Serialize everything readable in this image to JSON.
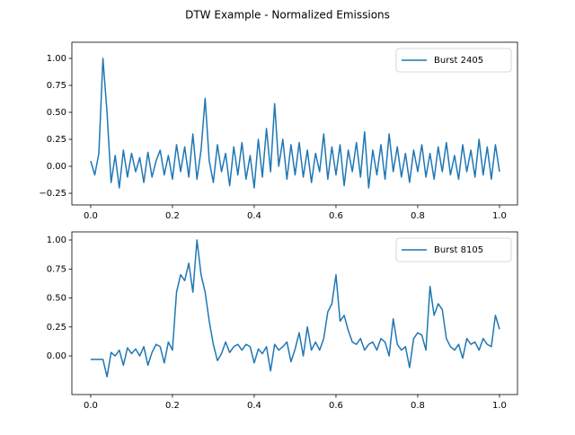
{
  "suptitle": "DTW Example - Normalized Emissions",
  "chart_data": [
    {
      "type": "line",
      "x": [
        0,
        0.01,
        0.02,
        0.03,
        0.04,
        0.05,
        0.06,
        0.07,
        0.08,
        0.09,
        0.1,
        0.11,
        0.12,
        0.13,
        0.14,
        0.15,
        0.16,
        0.17,
        0.18,
        0.19,
        0.2,
        0.21,
        0.22,
        0.23,
        0.24,
        0.25,
        0.26,
        0.27,
        0.28,
        0.29,
        0.3,
        0.31,
        0.32,
        0.33,
        0.34,
        0.35,
        0.36,
        0.37,
        0.38,
        0.39,
        0.4,
        0.41,
        0.42,
        0.43,
        0.44,
        0.45,
        0.46,
        0.47,
        0.48,
        0.49,
        0.5,
        0.51,
        0.52,
        0.53,
        0.54,
        0.55,
        0.56,
        0.57,
        0.58,
        0.59,
        0.6,
        0.61,
        0.62,
        0.63,
        0.64,
        0.65,
        0.66,
        0.67,
        0.68,
        0.69,
        0.7,
        0.71,
        0.72,
        0.73,
        0.74,
        0.75,
        0.76,
        0.77,
        0.78,
        0.79,
        0.8,
        0.81,
        0.82,
        0.83,
        0.84,
        0.85,
        0.86,
        0.87,
        0.88,
        0.89,
        0.9,
        0.91,
        0.92,
        0.93,
        0.94,
        0.95,
        0.96,
        0.97,
        0.98,
        0.99,
        1
      ],
      "series": [
        {
          "name": "Burst 2405",
          "color": "#1f77b4",
          "values": [
            0.05,
            -0.08,
            0.12,
            1.0,
            0.5,
            -0.15,
            0.1,
            -0.2,
            0.15,
            -0.1,
            0.12,
            -0.05,
            0.08,
            -0.15,
            0.13,
            -0.1,
            0.05,
            0.15,
            -0.08,
            0.1,
            -0.12,
            0.2,
            -0.05,
            0.18,
            -0.1,
            0.3,
            -0.12,
            0.15,
            0.63,
            0.05,
            -0.15,
            0.2,
            -0.05,
            0.12,
            -0.18,
            0.18,
            -0.08,
            0.22,
            -0.12,
            0.1,
            -0.2,
            0.25,
            -0.1,
            0.35,
            -0.05,
            0.58,
            0.0,
            0.25,
            -0.12,
            0.2,
            -0.08,
            0.22,
            -0.1,
            0.15,
            -0.15,
            0.12,
            -0.05,
            0.3,
            -0.12,
            0.18,
            -0.08,
            0.2,
            -0.18,
            0.15,
            -0.05,
            0.22,
            -0.1,
            0.32,
            -0.2,
            0.15,
            -0.08,
            0.2,
            -0.12,
            0.3,
            -0.05,
            0.18,
            -0.1,
            0.12,
            -0.15,
            0.15,
            -0.05,
            0.2,
            -0.1,
            0.12,
            -0.12,
            0.18,
            -0.05,
            0.22,
            -0.08,
            0.1,
            -0.12,
            0.2,
            -0.05,
            0.15,
            -0.1,
            0.25,
            -0.08,
            0.18,
            -0.12,
            0.2,
            -0.05
          ]
        }
      ],
      "xlim": [
        -0.046,
        1.044
      ],
      "ylim": [
        -0.358,
        1.15
      ],
      "xticks": [
        {
          "value": 0,
          "label": "0.0"
        },
        {
          "value": 0.2,
          "label": "0.2"
        },
        {
          "value": 0.4,
          "label": "0.4"
        },
        {
          "value": 0.6,
          "label": "0.6"
        },
        {
          "value": 0.8,
          "label": "0.8"
        },
        {
          "value": 1,
          "label": "1.0"
        }
      ],
      "yticks": [
        {
          "value": -0.25,
          "label": "−0.25"
        },
        {
          "value": 0,
          "label": "0.00"
        },
        {
          "value": 0.25,
          "label": "0.25"
        },
        {
          "value": 0.5,
          "label": "0.50"
        },
        {
          "value": 0.75,
          "label": "0.75"
        },
        {
          "value": 1,
          "label": "1.00"
        }
      ],
      "legend": "upper right"
    },
    {
      "type": "line",
      "x": [
        0,
        0.01,
        0.02,
        0.03,
        0.04,
        0.05,
        0.06,
        0.07,
        0.08,
        0.09,
        0.1,
        0.11,
        0.12,
        0.13,
        0.14,
        0.15,
        0.16,
        0.17,
        0.18,
        0.19,
        0.2,
        0.21,
        0.22,
        0.23,
        0.24,
        0.25,
        0.26,
        0.27,
        0.28,
        0.29,
        0.3,
        0.31,
        0.32,
        0.33,
        0.34,
        0.35,
        0.36,
        0.37,
        0.38,
        0.39,
        0.4,
        0.41,
        0.42,
        0.43,
        0.44,
        0.45,
        0.46,
        0.47,
        0.48,
        0.49,
        0.5,
        0.51,
        0.52,
        0.53,
        0.54,
        0.55,
        0.56,
        0.57,
        0.58,
        0.59,
        0.6,
        0.61,
        0.62,
        0.63,
        0.64,
        0.65,
        0.66,
        0.67,
        0.68,
        0.69,
        0.7,
        0.71,
        0.72,
        0.73,
        0.74,
        0.75,
        0.76,
        0.77,
        0.78,
        0.79,
        0.8,
        0.81,
        0.82,
        0.83,
        0.84,
        0.85,
        0.86,
        0.87,
        0.88,
        0.89,
        0.9,
        0.91,
        0.92,
        0.93,
        0.94,
        0.95,
        0.96,
        0.97,
        0.98,
        0.99,
        1
      ],
      "series": [
        {
          "name": "Burst 8105",
          "color": "#1f77b4",
          "values": [
            -0.03,
            -0.03,
            -0.03,
            -0.03,
            -0.18,
            0.03,
            0.0,
            0.05,
            -0.08,
            0.07,
            0.02,
            0.06,
            0.0,
            0.08,
            -0.08,
            0.03,
            0.1,
            0.08,
            -0.06,
            0.12,
            0.05,
            0.55,
            0.7,
            0.65,
            0.8,
            0.55,
            1.0,
            0.7,
            0.55,
            0.3,
            0.1,
            -0.04,
            0.02,
            0.12,
            0.03,
            0.08,
            0.1,
            0.05,
            0.1,
            0.08,
            -0.06,
            0.06,
            0.02,
            0.08,
            -0.13,
            0.1,
            0.05,
            0.08,
            0.12,
            -0.05,
            0.06,
            0.2,
            0.0,
            0.25,
            0.05,
            0.12,
            0.05,
            0.15,
            0.38,
            0.45,
            0.7,
            0.3,
            0.35,
            0.22,
            0.12,
            0.1,
            0.15,
            0.05,
            0.1,
            0.12,
            0.05,
            0.15,
            0.12,
            0.0,
            0.32,
            0.1,
            0.05,
            0.08,
            -0.1,
            0.15,
            0.2,
            0.18,
            0.05,
            0.6,
            0.35,
            0.45,
            0.4,
            0.15,
            0.08,
            0.05,
            0.1,
            -0.02,
            0.15,
            0.1,
            0.12,
            0.05,
            0.15,
            0.1,
            0.08,
            0.35,
            0.23
          ]
        }
      ],
      "xlim": [
        -0.046,
        1.044
      ],
      "ylim": [
        -0.333,
        1.07
      ],
      "xticks": [
        {
          "value": 0,
          "label": "0.0"
        },
        {
          "value": 0.2,
          "label": "0.2"
        },
        {
          "value": 0.4,
          "label": "0.4"
        },
        {
          "value": 0.6,
          "label": "0.6"
        },
        {
          "value": 0.8,
          "label": "0.8"
        },
        {
          "value": 1,
          "label": "1.0"
        }
      ],
      "yticks": [
        {
          "value": 0,
          "label": "0.00"
        },
        {
          "value": 0.25,
          "label": "0.25"
        },
        {
          "value": 0.5,
          "label": "0.50"
        },
        {
          "value": 0.75,
          "label": "0.75"
        },
        {
          "value": 1,
          "label": "1.00"
        }
      ],
      "legend": "upper right"
    }
  ]
}
